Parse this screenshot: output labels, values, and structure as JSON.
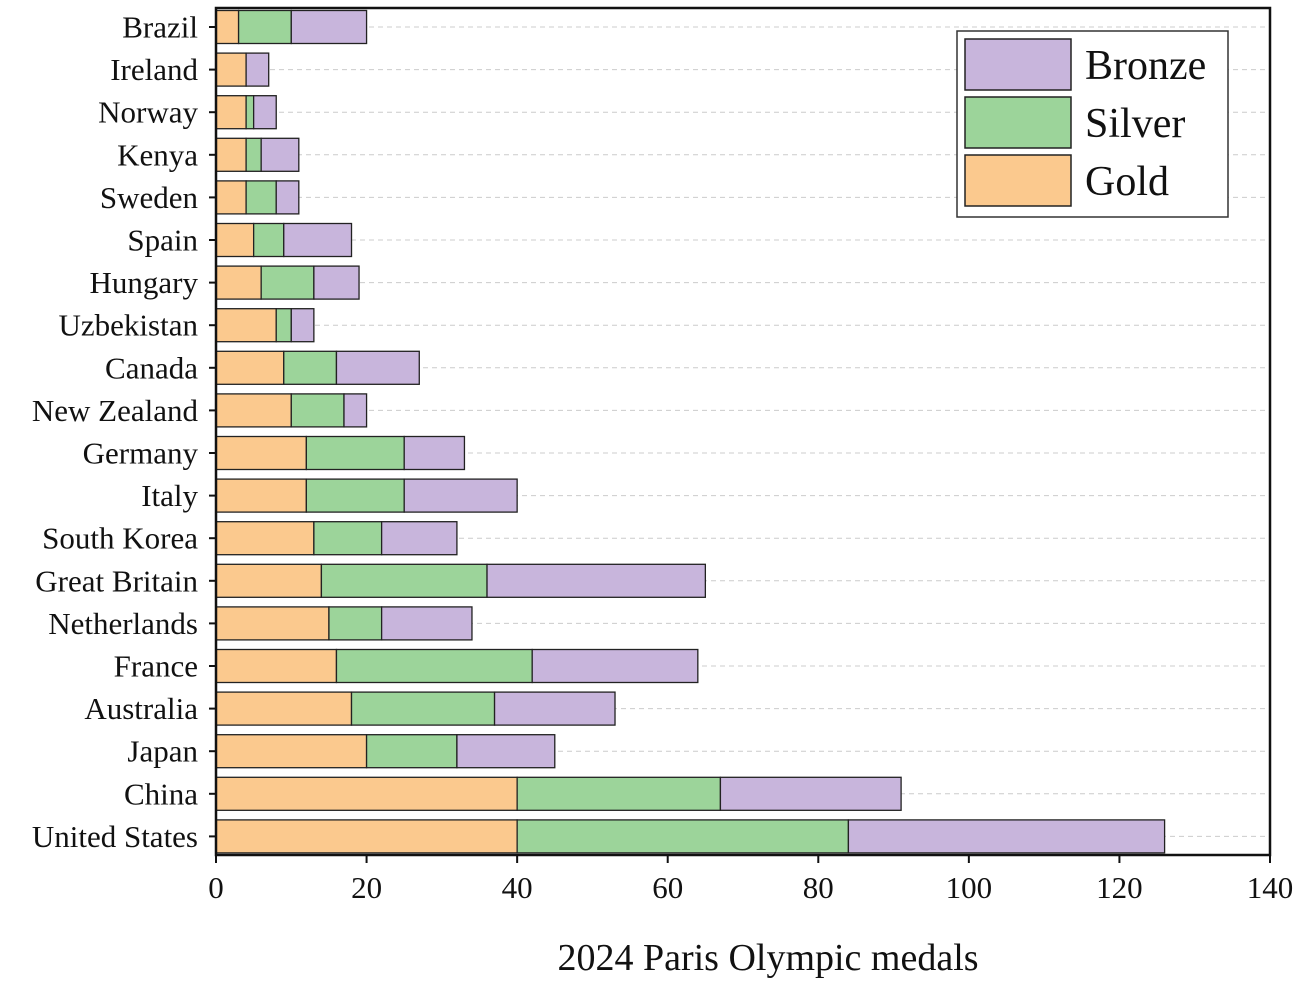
{
  "chart_data": {
    "type": "bar",
    "orientation": "horizontal",
    "stacked": true,
    "title": "",
    "xlabel": "2024 Paris Olympic medals",
    "ylabel": "",
    "xlim": [
      0,
      140
    ],
    "xticks": [
      0,
      20,
      40,
      60,
      80,
      100,
      120,
      140
    ],
    "grid": "horizontal dashed",
    "legend_position": "top-right",
    "categories": [
      "Brazil",
      "Ireland",
      "Norway",
      "Kenya",
      "Sweden",
      "Spain",
      "Hungary",
      "Uzbekistan",
      "Canada",
      "New Zealand",
      "Germany",
      "Italy",
      "South Korea",
      "Great Britain",
      "Netherlands",
      "France",
      "Australia",
      "Japan",
      "China",
      "United States"
    ],
    "series": [
      {
        "name": "Gold",
        "color": "#fbc98e",
        "values": [
          3,
          4,
          4,
          4,
          4,
          5,
          6,
          8,
          9,
          10,
          12,
          12,
          13,
          14,
          15,
          16,
          18,
          20,
          40,
          40
        ]
      },
      {
        "name": "Silver",
        "color": "#9cd49a",
        "values": [
          7,
          0,
          1,
          2,
          4,
          4,
          7,
          2,
          7,
          7,
          13,
          13,
          9,
          22,
          7,
          26,
          19,
          12,
          27,
          44
        ]
      },
      {
        "name": "Bronze",
        "color": "#c8b5dc",
        "values": [
          10,
          3,
          3,
          5,
          3,
          9,
          6,
          3,
          11,
          3,
          8,
          15,
          10,
          29,
          12,
          22,
          16,
          13,
          24,
          42
        ]
      }
    ],
    "legend_order": [
      "Bronze",
      "Silver",
      "Gold"
    ]
  }
}
